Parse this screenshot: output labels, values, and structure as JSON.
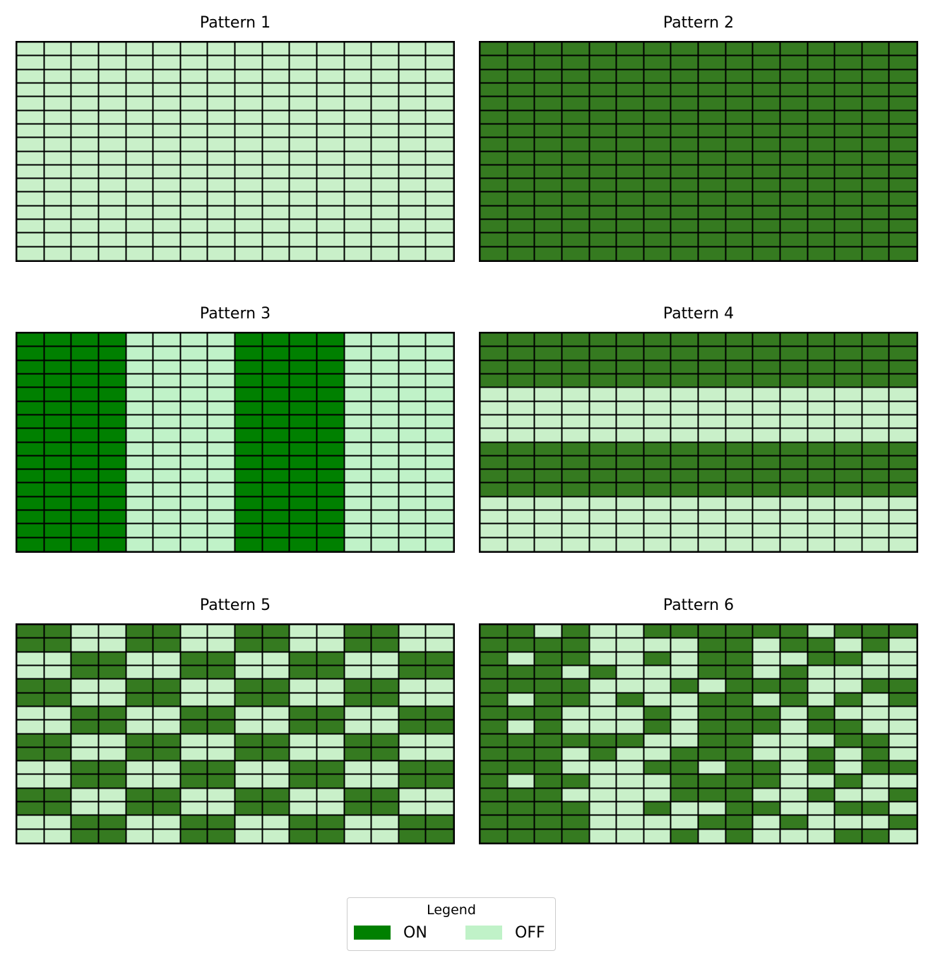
{
  "chart_data": {
    "type": "heatmap",
    "rows": 16,
    "cols": 16,
    "colors": {
      "on_solid": "#008000",
      "off_solid": "#c0f2c8",
      "on_muted": "#357a20",
      "off_muted": "#c9f0c9",
      "gridline": "#000000"
    },
    "legend": {
      "title": "Legend",
      "placement": "bottom-center",
      "entries": [
        {
          "label": "ON",
          "color": "#008000"
        },
        {
          "label": "OFF",
          "color": "#c0f2c8"
        }
      ]
    },
    "panels": [
      {
        "title": "Pattern 1",
        "palette": "muted",
        "rows": [
          "0000000000000000",
          "0000000000000000",
          "0000000000000000",
          "0000000000000000",
          "0000000000000000",
          "0000000000000000",
          "0000000000000000",
          "0000000000000000",
          "0000000000000000",
          "0000000000000000",
          "0000000000000000",
          "0000000000000000",
          "0000000000000000",
          "0000000000000000",
          "0000000000000000",
          "0000000000000000"
        ]
      },
      {
        "title": "Pattern 2",
        "palette": "muted",
        "rows": [
          "1111111111111111",
          "1111111111111111",
          "1111111111111111",
          "1111111111111111",
          "1111111111111111",
          "1111111111111111",
          "1111111111111111",
          "1111111111111111",
          "1111111111111111",
          "1111111111111111",
          "1111111111111111",
          "1111111111111111",
          "1111111111111111",
          "1111111111111111",
          "1111111111111111",
          "1111111111111111"
        ]
      },
      {
        "title": "Pattern 3",
        "palette": "solid",
        "rows": [
          "1111000011110000",
          "1111000011110000",
          "1111000011110000",
          "1111000011110000",
          "1111000011110000",
          "1111000011110000",
          "1111000011110000",
          "1111000011110000",
          "1111000011110000",
          "1111000011110000",
          "1111000011110000",
          "1111000011110000",
          "1111000011110000",
          "1111000011110000",
          "1111000011110000",
          "1111000011110000"
        ]
      },
      {
        "title": "Pattern 4",
        "palette": "muted",
        "rows": [
          "1111111111111111",
          "1111111111111111",
          "1111111111111111",
          "1111111111111111",
          "0000000000000000",
          "0000000000000000",
          "0000000000000000",
          "0000000000000000",
          "1111111111111111",
          "1111111111111111",
          "1111111111111111",
          "1111111111111111",
          "0000000000000000",
          "0000000000000000",
          "0000000000000000",
          "0000000000000000"
        ]
      },
      {
        "title": "Pattern 5",
        "palette": "muted",
        "rows": [
          "1100110011001100",
          "1100110011001100",
          "0011001100110011",
          "0011001100110011",
          "1100110011001100",
          "1100110011001100",
          "0011001100110011",
          "0011001100110011",
          "1100110011001100",
          "1100110011001100",
          "0011001100110011",
          "0011001100110011",
          "1100110011001100",
          "1100110011001100",
          "0011001100110011",
          "0011001100110011"
        ]
      },
      {
        "title": "Pattern 6",
        "palette": "muted",
        "rows": [
          "1101001111110111",
          "1111000011011010",
          "1011001011001100",
          "1110100011010000",
          "1111000101110011",
          "1011010011010101",
          "1110001011101000",
          "1010001011101100",
          "1111110011000110",
          "1110100111001010",
          "1110001101101011",
          "1011000111100100",
          "1110000111001001",
          "1111001001100110",
          "1111000011010001",
          "1111000101000110"
        ]
      }
    ]
  }
}
